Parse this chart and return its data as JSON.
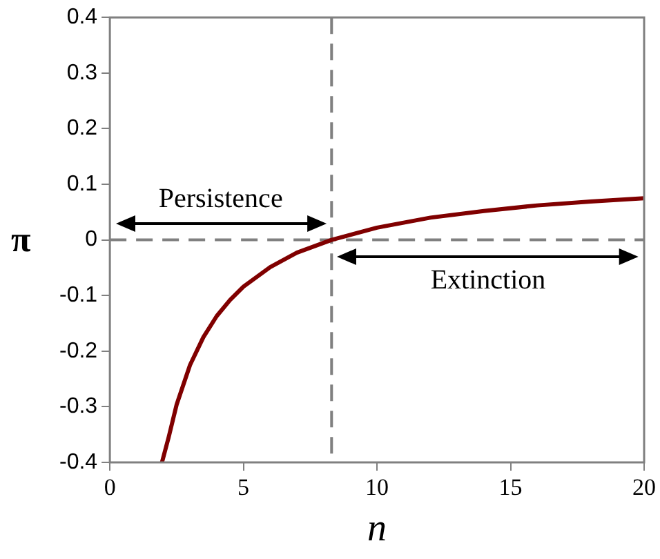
{
  "chart_data": {
    "type": "line",
    "xlabel": "n",
    "ylabel": "π",
    "x": [
      1.95,
      2.2,
      2.5,
      3,
      3.5,
      4,
      4.5,
      5,
      6,
      7,
      8.3,
      10,
      12,
      14,
      16,
      18,
      20
    ],
    "series": [
      {
        "color": "#800000",
        "values": [
          -0.4,
          -0.355,
          -0.296,
          -0.225,
          -0.175,
          -0.137,
          -0.108,
          -0.084,
          -0.049,
          -0.023,
          0,
          0.022,
          0.04,
          0.052,
          0.062,
          0.069,
          0.075
        ]
      }
    ],
    "xlim": [
      0,
      20
    ],
    "xticks": [
      0,
      5,
      10,
      15,
      20
    ],
    "ylim": [
      -0.4,
      0.4
    ],
    "yticks": [
      -0.4,
      -0.3,
      -0.2,
      -0.1,
      0,
      0.1,
      0.2,
      0.3,
      0.4
    ],
    "grid": false,
    "legend": false,
    "marker": "none",
    "line_style": "solid",
    "ref_lines": [
      {
        "axis": "y",
        "value": 0,
        "color": "#808080",
        "line_style": "dashed"
      },
      {
        "axis": "x",
        "value": 8.3,
        "color": "#808080",
        "line_style": "dashed"
      }
    ],
    "annotations": [
      "Persistence",
      "Extinction"
    ]
  }
}
